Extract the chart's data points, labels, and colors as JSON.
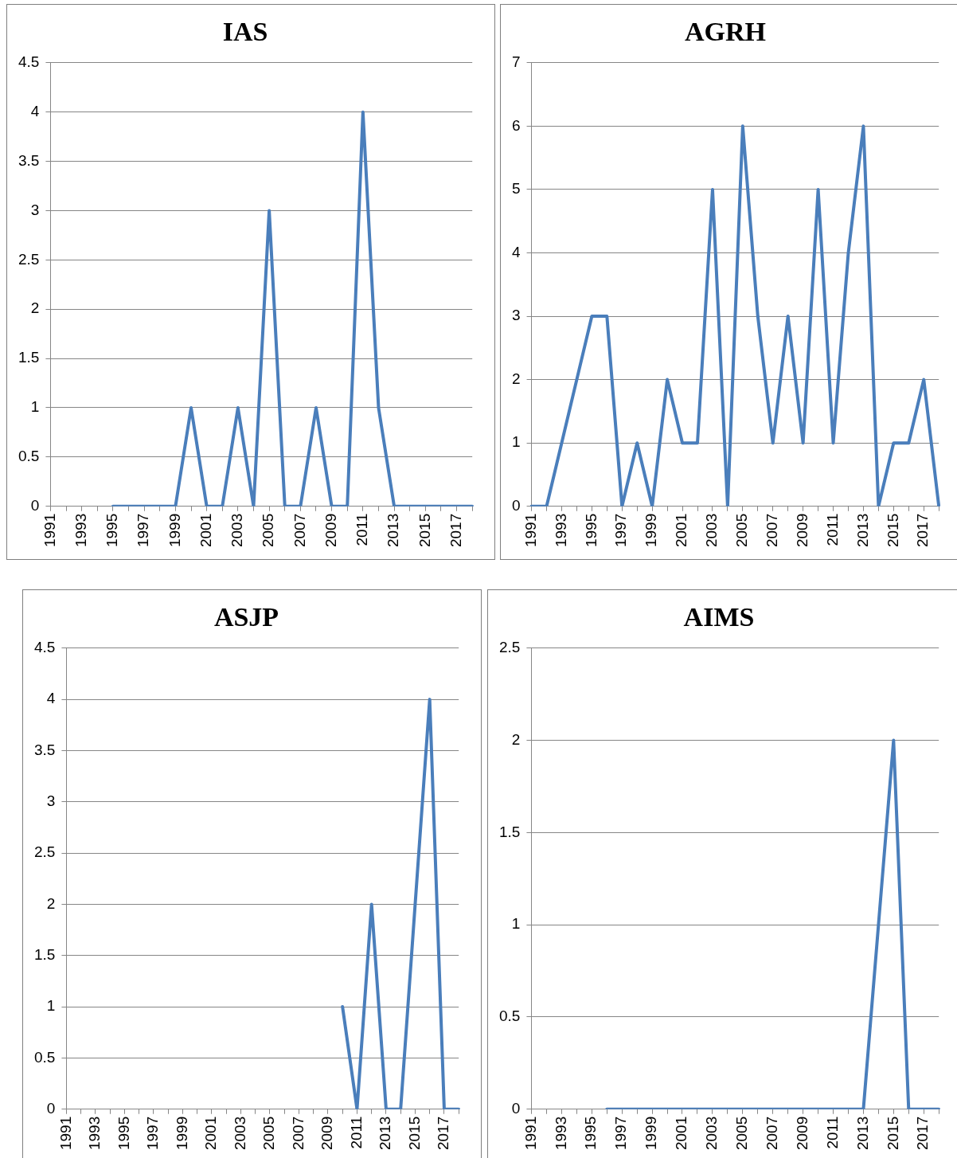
{
  "chart_data": [
    {
      "type": "line",
      "title": "IAS",
      "categories": [
        "1991",
        null,
        "1993",
        null,
        "1995",
        null,
        "1997",
        null,
        "1999",
        null,
        "2001",
        null,
        "2003",
        null,
        "2005",
        null,
        "2007",
        null,
        "2009",
        null,
        "2011",
        null,
        "2013",
        null,
        "2015",
        null,
        "2017",
        null
      ],
      "series": [
        {
          "color": "#4a7ebb",
          "values": [
            null,
            null,
            null,
            null,
            0,
            0,
            0,
            0,
            0,
            1,
            0,
            0,
            1,
            0,
            3,
            0,
            0,
            1,
            0,
            0,
            4,
            1,
            0,
            0,
            0,
            0,
            0,
            0
          ]
        }
      ],
      "ylim": [
        0,
        4.5
      ],
      "yticks": [
        0,
        0.5,
        1,
        1.5,
        2,
        2.5,
        3,
        3.5,
        4,
        4.5
      ],
      "grid": "y",
      "legend": false,
      "marker": "none"
    },
    {
      "type": "line",
      "title": "AGRH",
      "categories": [
        "1991",
        null,
        "1993",
        null,
        "1995",
        null,
        "1997",
        null,
        "1999",
        null,
        "2001",
        null,
        "2003",
        null,
        "2005",
        null,
        "2007",
        null,
        "2009",
        null,
        "2011",
        null,
        "2013",
        null,
        "2015",
        null,
        "2017",
        null
      ],
      "series": [
        {
          "color": "#4a7ebb",
          "values": [
            0,
            0,
            1,
            2,
            3,
            3,
            0,
            1,
            0,
            2,
            1,
            1,
            5,
            0,
            6,
            3,
            1,
            3,
            1,
            5,
            1,
            4,
            6,
            0,
            1,
            1,
            2,
            0
          ]
        }
      ],
      "ylim": [
        0,
        7
      ],
      "yticks": [
        0,
        1,
        2,
        3,
        4,
        5,
        6,
        7
      ],
      "grid": "y",
      "legend": false,
      "marker": "none"
    },
    {
      "type": "line",
      "title": "ASJP",
      "categories": [
        "1991",
        null,
        "1993",
        null,
        "1995",
        null,
        "1997",
        null,
        "1999",
        null,
        "2001",
        null,
        "2003",
        null,
        "2005",
        null,
        "2007",
        null,
        "2009",
        null,
        "2011",
        null,
        "2013",
        null,
        "2015",
        null,
        "2017",
        null
      ],
      "series": [
        {
          "color": "#4a7ebb",
          "values": [
            null,
            null,
            null,
            null,
            null,
            null,
            null,
            null,
            null,
            null,
            null,
            null,
            null,
            null,
            null,
            null,
            null,
            null,
            null,
            1,
            0,
            2,
            0,
            0,
            2,
            4,
            0,
            0
          ]
        }
      ],
      "ylim": [
        0,
        4.5
      ],
      "yticks": [
        0,
        0.5,
        1,
        1.5,
        2,
        2.5,
        3,
        3.5,
        4,
        4.5
      ],
      "grid": "y",
      "legend": false,
      "marker": "none"
    },
    {
      "type": "line",
      "title": "AIMS",
      "categories": [
        "1991",
        null,
        "1993",
        null,
        "1995",
        null,
        "1997",
        null,
        "1999",
        null,
        "2001",
        null,
        "2003",
        null,
        "2005",
        null,
        "2007",
        null,
        "2009",
        null,
        "2011",
        null,
        "2013",
        null,
        "2015",
        null,
        "2017",
        null
      ],
      "series": [
        {
          "color": "#4a7ebb",
          "values": [
            null,
            null,
            null,
            null,
            null,
            0,
            0,
            0,
            0,
            0,
            0,
            0,
            0,
            0,
            0,
            0,
            0,
            0,
            0,
            0,
            0,
            0,
            0,
            1,
            2,
            0,
            0,
            0
          ]
        }
      ],
      "ylim": [
        0,
        2.5
      ],
      "yticks": [
        0,
        0.5,
        1,
        1.5,
        2,
        2.5
      ],
      "grid": "y",
      "legend": false,
      "marker": "none"
    }
  ]
}
